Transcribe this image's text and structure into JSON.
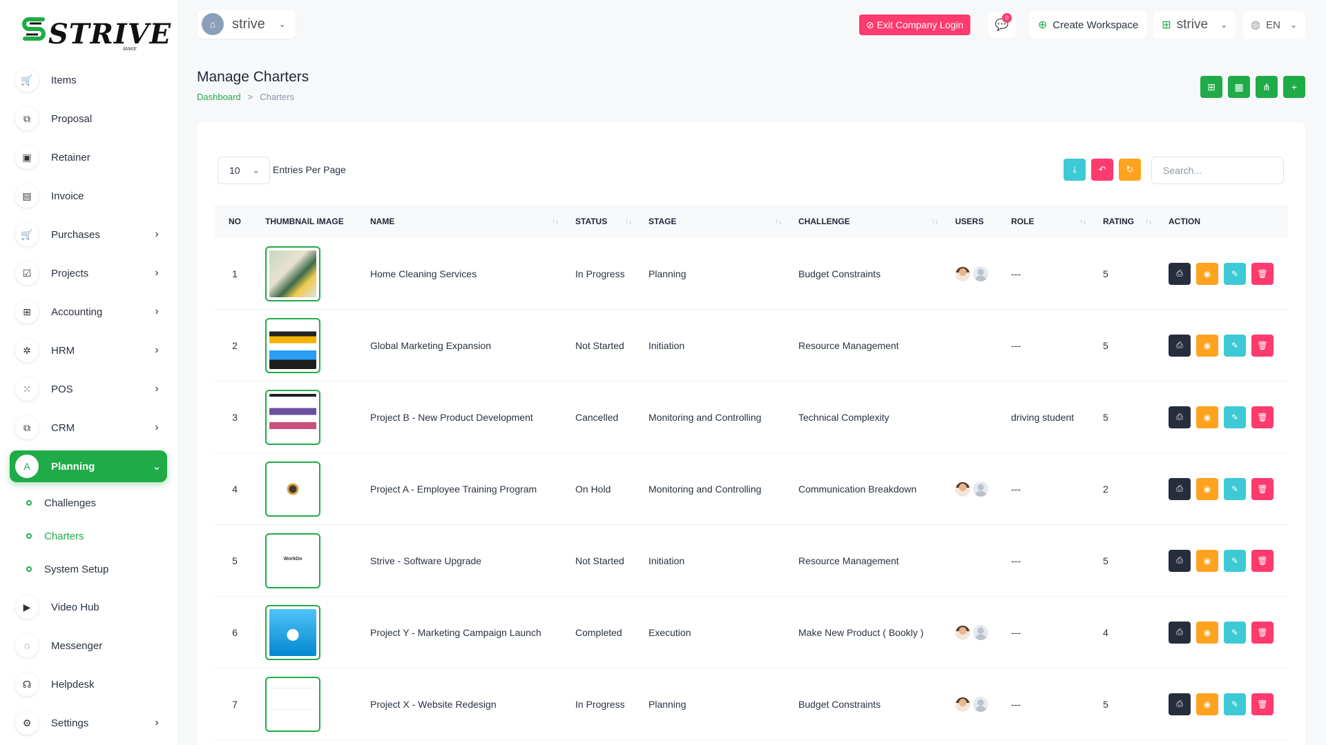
{
  "brand": {
    "logo_text": "STRIVE",
    "logo_sub": "MAKE"
  },
  "sidebar": {
    "items": [
      {
        "label": "Items",
        "icon": "cart-icon",
        "glyph": "🛒",
        "chevron": false
      },
      {
        "label": "Proposal",
        "icon": "proposal-icon",
        "glyph": "⧉",
        "chevron": false
      },
      {
        "label": "Retainer",
        "icon": "retainer-icon",
        "glyph": "▣",
        "chevron": false
      },
      {
        "label": "Invoice",
        "icon": "invoice-icon",
        "glyph": "▤",
        "chevron": false
      },
      {
        "label": "Purchases",
        "icon": "purchases-icon",
        "glyph": "🛒",
        "chevron": true
      },
      {
        "label": "Projects",
        "icon": "projects-icon",
        "glyph": "☑",
        "chevron": true
      },
      {
        "label": "Accounting",
        "icon": "accounting-icon",
        "glyph": "⊞",
        "chevron": true
      },
      {
        "label": "HRM",
        "icon": "hrm-icon",
        "glyph": "✲",
        "chevron": true
      },
      {
        "label": "POS",
        "icon": "pos-icon",
        "glyph": "⁙",
        "chevron": true
      },
      {
        "label": "CRM",
        "icon": "crm-icon",
        "glyph": "⧉",
        "chevron": true
      }
    ],
    "active": {
      "label": "Planning",
      "icon": "planning-icon",
      "glyph": "A"
    },
    "sub_items": [
      {
        "label": "Challenges",
        "active": false
      },
      {
        "label": "Charters",
        "active": true
      },
      {
        "label": "System Setup",
        "active": false
      }
    ],
    "bottom_items": [
      {
        "label": "Video Hub",
        "icon": "video-icon",
        "glyph": "▶",
        "chevron": false
      },
      {
        "label": "Messenger",
        "icon": "messenger-icon",
        "glyph": "◌",
        "chevron": false
      },
      {
        "label": "Helpdesk",
        "icon": "helpdesk-icon",
        "glyph": "☊",
        "chevron": false
      },
      {
        "label": "Settings",
        "icon": "settings-icon",
        "glyph": "⚙",
        "chevron": true
      }
    ]
  },
  "topbar": {
    "workspace": "strive",
    "exit_label": "Exit Company Login",
    "message_count": "0",
    "create_workspace": "Create Workspace",
    "workspace_switch": "strive",
    "language": "EN"
  },
  "header": {
    "title": "Manage Charters",
    "breadcrumb_home": "Dashboard",
    "breadcrumb_sep": ">",
    "breadcrumb_current": "Charters"
  },
  "table_controls": {
    "entries_value": "10",
    "entries_label": "Entries Per Page",
    "search_placeholder": "Search..."
  },
  "columns": [
    "NO",
    "THUMBNAIL IMAGE",
    "NAME",
    "STATUS",
    "STAGE",
    "CHALLENGE",
    "USERS",
    "ROLE",
    "RATING",
    "ACTION"
  ],
  "rows": [
    {
      "no": "1",
      "name": "Home Cleaning Services",
      "status": "In Progress",
      "stage": "Planning",
      "challenge": "Budget Constraints",
      "users": 2,
      "role": "---",
      "rating": "5",
      "thumb": "cleaning"
    },
    {
      "no": "2",
      "name": "Global Marketing Expansion",
      "status": "Not Started",
      "stage": "Initiation",
      "challenge": "Resource Management",
      "users": 0,
      "role": "---",
      "rating": "5",
      "thumb": "marketing"
    },
    {
      "no": "3",
      "name": "Project B - New Product Development",
      "status": "Cancelled",
      "stage": "Monitoring and Controlling",
      "challenge": "Technical Complexity",
      "users": 0,
      "role": "driving student",
      "rating": "5",
      "thumb": "product"
    },
    {
      "no": "4",
      "name": "Project A - Employee Training Program",
      "status": "On Hold",
      "stage": "Monitoring and Controlling",
      "challenge": "Communication Breakdown",
      "users": 2,
      "role": "---",
      "rating": "2",
      "thumb": "training"
    },
    {
      "no": "5",
      "name": "Strive - Software Upgrade",
      "status": "Not Started",
      "stage": "Initiation",
      "challenge": "Resource Management",
      "users": 0,
      "role": "---",
      "rating": "5",
      "thumb": "software",
      "thumb_text": "WorkDo"
    },
    {
      "no": "6",
      "name": "Project Y - Marketing Campaign Launch",
      "status": "Completed",
      "stage": "Execution",
      "challenge": "Make New Product ( Bookly )",
      "users": 2,
      "role": "---",
      "rating": "4",
      "thumb": "campaign"
    },
    {
      "no": "7",
      "name": "Project X - Website Redesign",
      "status": "In Progress",
      "stage": "Planning",
      "challenge": "Budget Constraints",
      "users": 2,
      "role": "---",
      "rating": "5",
      "thumb": "website"
    }
  ],
  "colors": {
    "primary": "#1fab47",
    "danger": "#ff3a6e",
    "warning": "#ffa21d",
    "info": "#3ec9d6",
    "dark": "#262e3d"
  }
}
